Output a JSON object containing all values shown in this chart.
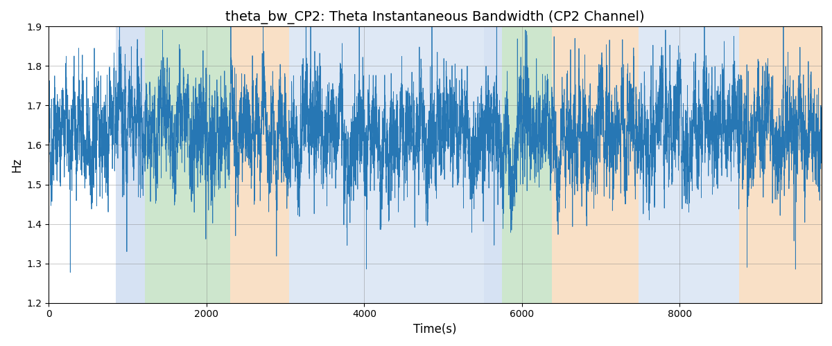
{
  "title": "theta_bw_CP2: Theta Instantaneous Bandwidth (CP2 Channel)",
  "xlabel": "Time(s)",
  "ylabel": "Hz",
  "ylim": [
    1.2,
    1.9
  ],
  "xlim": [
    0,
    9800
  ],
  "line_color": "#2777b4",
  "line_width": 0.6,
  "background_color": "#ffffff",
  "bands": [
    {
      "start": 850,
      "end": 1220,
      "color": "#aec6e8",
      "alpha": 0.5
    },
    {
      "start": 1220,
      "end": 2300,
      "color": "#90c890",
      "alpha": 0.45
    },
    {
      "start": 2300,
      "end": 3050,
      "color": "#f5c897",
      "alpha": 0.55
    },
    {
      "start": 3050,
      "end": 5520,
      "color": "#aec6e8",
      "alpha": 0.4
    },
    {
      "start": 5520,
      "end": 5750,
      "color": "#aec6e8",
      "alpha": 0.5
    },
    {
      "start": 5750,
      "end": 6380,
      "color": "#90c890",
      "alpha": 0.45
    },
    {
      "start": 6380,
      "end": 7480,
      "color": "#f5c897",
      "alpha": 0.55
    },
    {
      "start": 7480,
      "end": 8750,
      "color": "#aec6e8",
      "alpha": 0.4
    },
    {
      "start": 8750,
      "end": 9800,
      "color": "#f5c897",
      "alpha": 0.55
    }
  ],
  "signal_mean": 1.63,
  "n_points": 9800,
  "random_seed": 42,
  "figsize": [
    12.0,
    5.0
  ],
  "dpi": 100
}
